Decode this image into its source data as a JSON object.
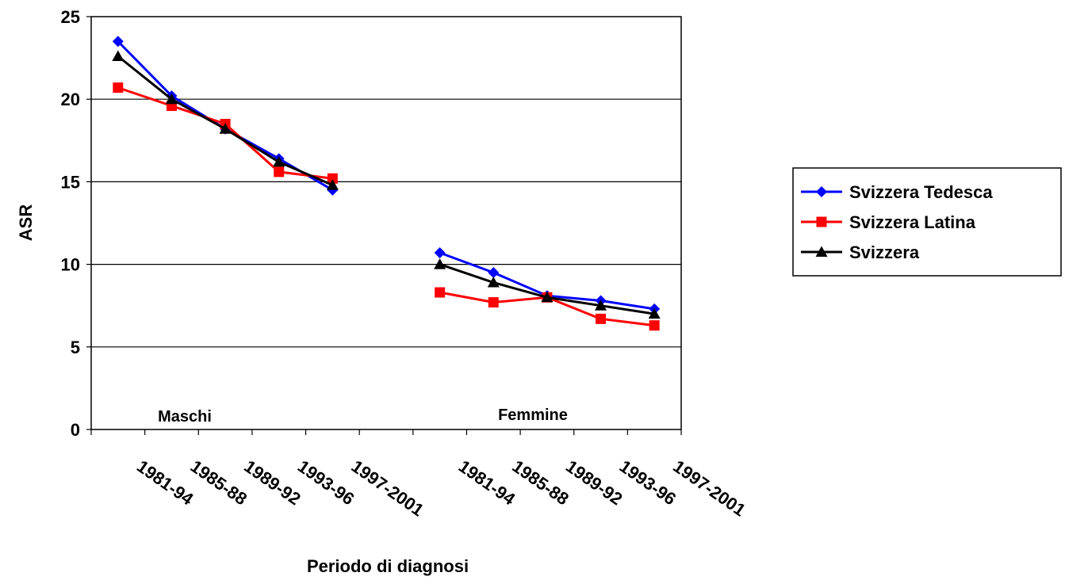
{
  "chart_data": {
    "type": "line",
    "xlabel": "Periodo di diagnosi",
    "ylabel": "ASR",
    "ylim": [
      0,
      25
    ],
    "yticks": [
      0,
      5,
      10,
      15,
      20,
      25
    ],
    "grid": true,
    "legend_position": "right",
    "groups": [
      {
        "label": "Maschi",
        "categories": [
          "1981-94",
          "1985-88",
          "1989-92",
          "1993-96",
          "1997-2001"
        ]
      },
      {
        "label": "Femmine",
        "categories": [
          "1981-94",
          "1985-88",
          "1989-92",
          "1993-96",
          "1997-2001"
        ]
      }
    ],
    "series": [
      {
        "name": "Svizzera Tedesca",
        "color": "#0000FF",
        "marker": "diamond",
        "maschi": [
          23.5,
          20.2,
          18.2,
          16.4,
          14.5
        ],
        "femmine": [
          10.7,
          9.5,
          8.1,
          7.8,
          7.3
        ]
      },
      {
        "name": "Svizzera Latina",
        "color": "#FF0000",
        "marker": "square",
        "maschi": [
          20.7,
          19.6,
          18.5,
          15.6,
          15.2
        ],
        "femmine": [
          8.3,
          7.7,
          8.0,
          6.7,
          6.3
        ]
      },
      {
        "name": "Svizzera",
        "color": "#000000",
        "marker": "triangle",
        "maschi": [
          22.6,
          20.0,
          18.2,
          16.2,
          14.8
        ],
        "femmine": [
          10.0,
          8.9,
          8.0,
          7.5,
          7.0
        ]
      }
    ]
  }
}
